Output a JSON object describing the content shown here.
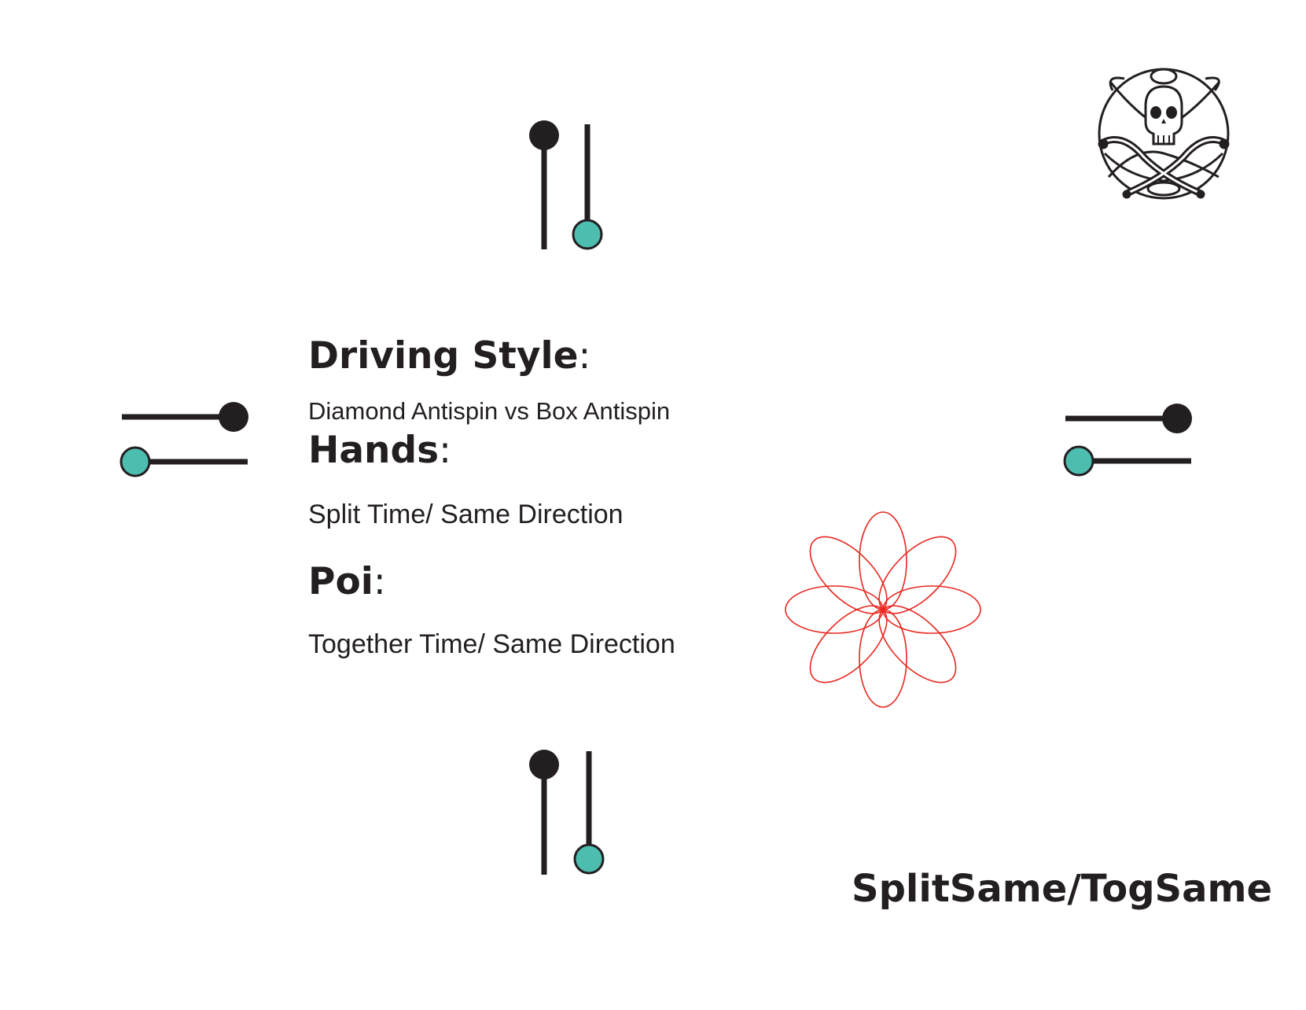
{
  "driving_style": {
    "heading": "Driving Style",
    "colon": ":",
    "value": "Diamond Antispin vs  Box Antispin"
  },
  "hands": {
    "heading": "Hands",
    "colon": ":",
    "value": "Split Time/ Same Direction"
  },
  "poi": {
    "heading": "Poi",
    "colon": ":",
    "value": "Together Time/ Same Direction"
  },
  "footer": {
    "title": "SplitSame/TogSame"
  },
  "colors": {
    "ink": "#231f20",
    "teal": "#4dbdb0",
    "flower": "#e8271f"
  },
  "icons": [
    "poi-diagram-top",
    "poi-diagram-left",
    "poi-diagram-right",
    "poi-diagram-bottom",
    "flower-pattern",
    "skull-crossbones-logo"
  ]
}
